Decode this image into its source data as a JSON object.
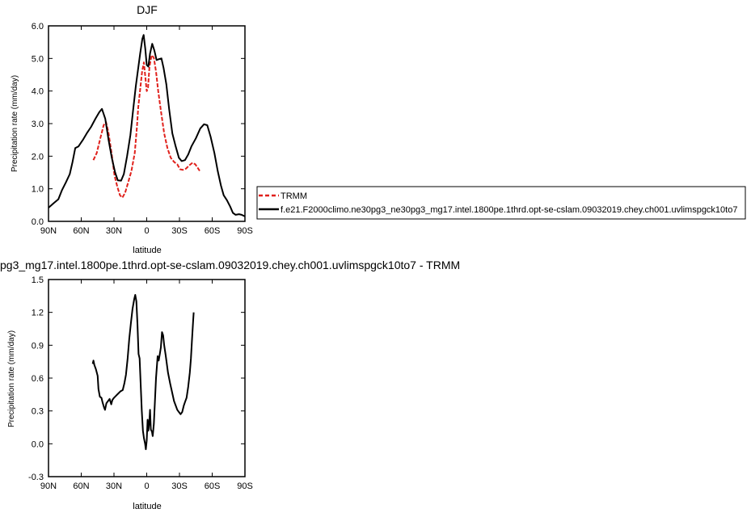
{
  "chart_data": [
    {
      "type": "line",
      "title": "DJF",
      "xlabel": "latitude",
      "ylabel": "Precipitation rate (mm/day)",
      "x_direction": "north-to-south",
      "xlim": [
        90,
        -90
      ],
      "ylim": [
        0,
        6
      ],
      "xticks": [
        {
          "value": 90,
          "label": "90N"
        },
        {
          "value": 60,
          "label": "60N"
        },
        {
          "value": 30,
          "label": "30N"
        },
        {
          "value": 0,
          "label": "0"
        },
        {
          "value": -30,
          "label": "30S"
        },
        {
          "value": -60,
          "label": "60S"
        },
        {
          "value": -90,
          "label": "90S"
        }
      ],
      "yticks": [
        {
          "value": 0,
          "label": "0.0"
        },
        {
          "value": 1,
          "label": "1.0"
        },
        {
          "value": 2,
          "label": "2.0"
        },
        {
          "value": 3,
          "label": "3.0"
        },
        {
          "value": 4,
          "label": "4.0"
        },
        {
          "value": 5,
          "label": "5.0"
        },
        {
          "value": 6,
          "label": "6.0"
        }
      ],
      "legend_position": "right",
      "series": [
        {
          "name": "TRMM",
          "color": "#e0201b",
          "dash": true,
          "points": [
            [
              48.9,
              1.88
            ],
            [
              45.8,
              2.1
            ],
            [
              42.5,
              2.55
            ],
            [
              39.5,
              2.95
            ],
            [
              37.3,
              3.05
            ],
            [
              35.2,
              2.75
            ],
            [
              32.2,
              2.1
            ],
            [
              29.5,
              1.4
            ],
            [
              26.8,
              1.05
            ],
            [
              24.5,
              0.8
            ],
            [
              22.3,
              0.73
            ],
            [
              19.8,
              0.88
            ],
            [
              17.0,
              1.2
            ],
            [
              14.0,
              1.55
            ],
            [
              11.0,
              2.1
            ],
            [
              9.0,
              2.9
            ],
            [
              7.8,
              3.5
            ],
            [
              6.0,
              4.05
            ],
            [
              4.2,
              4.6
            ],
            [
              2.6,
              4.88
            ],
            [
              1.5,
              4.5
            ],
            [
              0.0,
              4.0
            ],
            [
              -1.2,
              4.1
            ],
            [
              -2.5,
              4.75
            ],
            [
              -4.5,
              5.1
            ],
            [
              -6.5,
              5.02
            ],
            [
              -8.5,
              4.6
            ],
            [
              -10.5,
              4.0
            ],
            [
              -13.0,
              3.4
            ],
            [
              -16.0,
              2.7
            ],
            [
              -19.0,
              2.25
            ],
            [
              -22.0,
              1.95
            ],
            [
              -25.2,
              1.82
            ],
            [
              -28.0,
              1.75
            ],
            [
              -30.5,
              1.6
            ],
            [
              -33.0,
              1.58
            ],
            [
              -36.0,
              1.62
            ],
            [
              -39.0,
              1.72
            ],
            [
              -42.0,
              1.8
            ],
            [
              -44.5,
              1.75
            ],
            [
              -46.5,
              1.65
            ],
            [
              -48.5,
              1.55
            ]
          ]
        },
        {
          "name": "f.e21.F2000climo.ne30pg3_ne30pg3_mg17.intel.1800pe.1thrd.opt-se-cslam.09032019.chey.ch001.uvlimspgck10to7",
          "color": "#000000",
          "dash": false,
          "points": [
            [
              90.0,
              0.42
            ],
            [
              85.5,
              0.55
            ],
            [
              81.0,
              0.68
            ],
            [
              77.8,
              0.95
            ],
            [
              74.0,
              1.2
            ],
            [
              70.5,
              1.45
            ],
            [
              68.0,
              1.82
            ],
            [
              65.5,
              2.25
            ],
            [
              62.5,
              2.3
            ],
            [
              58.5,
              2.5
            ],
            [
              55.0,
              2.7
            ],
            [
              51.0,
              2.9
            ],
            [
              47.0,
              3.15
            ],
            [
              43.5,
              3.35
            ],
            [
              41.0,
              3.45
            ],
            [
              38.0,
              3.15
            ],
            [
              35.0,
              2.5
            ],
            [
              32.0,
              1.95
            ],
            [
              29.0,
              1.5
            ],
            [
              26.5,
              1.26
            ],
            [
              23.5,
              1.25
            ],
            [
              21.0,
              1.45
            ],
            [
              18.0,
              2.0
            ],
            [
              15.0,
              2.65
            ],
            [
              12.5,
              3.4
            ],
            [
              10.0,
              4.15
            ],
            [
              8.0,
              4.65
            ],
            [
              6.0,
              5.15
            ],
            [
              4.0,
              5.6
            ],
            [
              2.8,
              5.72
            ],
            [
              1.3,
              5.3
            ],
            [
              0.0,
              4.8
            ],
            [
              -1.5,
              4.75
            ],
            [
              -3.0,
              5.15
            ],
            [
              -5.0,
              5.45
            ],
            [
              -7.0,
              5.25
            ],
            [
              -9.0,
              4.95
            ],
            [
              -11.5,
              4.98
            ],
            [
              -13.5,
              5.0
            ],
            [
              -15.5,
              4.7
            ],
            [
              -18.0,
              4.2
            ],
            [
              -20.5,
              3.45
            ],
            [
              -23.5,
              2.7
            ],
            [
              -26.5,
              2.3
            ],
            [
              -29.5,
              1.95
            ],
            [
              -32.0,
              1.85
            ],
            [
              -35.0,
              1.88
            ],
            [
              -38.0,
              2.05
            ],
            [
              -41.0,
              2.3
            ],
            [
              -45.0,
              2.55
            ],
            [
              -49.0,
              2.85
            ],
            [
              -52.5,
              2.98
            ],
            [
              -55.5,
              2.95
            ],
            [
              -58.5,
              2.6
            ],
            [
              -62.0,
              2.1
            ],
            [
              -65.0,
              1.55
            ],
            [
              -68.0,
              1.1
            ],
            [
              -70.5,
              0.8
            ],
            [
              -73.5,
              0.65
            ],
            [
              -76.5,
              0.45
            ],
            [
              -79.0,
              0.26
            ],
            [
              -81.5,
              0.2
            ],
            [
              -84.5,
              0.22
            ],
            [
              -87.0,
              0.2
            ],
            [
              -90.0,
              0.15
            ]
          ]
        }
      ]
    },
    {
      "type": "line",
      "title": "pg3_mg17.intel.1800pe.1thrd.opt-se-cslam.09032019.chey.ch001.uvlimspgck10to7 - TRMM",
      "xlabel": "latitude",
      "ylabel": "Precipitation rate (mm/day)",
      "x_direction": "north-to-south",
      "xlim": [
        90,
        -90
      ],
      "ylim": [
        -0.3,
        1.5
      ],
      "xticks": [
        {
          "value": 90,
          "label": "90N"
        },
        {
          "value": 60,
          "label": "60N"
        },
        {
          "value": 30,
          "label": "30N"
        },
        {
          "value": 0,
          "label": "0"
        },
        {
          "value": -30,
          "label": "30S"
        },
        {
          "value": -60,
          "label": "60S"
        },
        {
          "value": -90,
          "label": "90S"
        }
      ],
      "yticks": [
        {
          "value": -0.3,
          "label": "-0.3"
        },
        {
          "value": 0.0,
          "label": "0.0"
        },
        {
          "value": 0.3,
          "label": "0.3"
        },
        {
          "value": 0.6,
          "label": "0.6"
        },
        {
          "value": 0.9,
          "label": "0.9"
        },
        {
          "value": 1.2,
          "label": "1.2"
        },
        {
          "value": 1.5,
          "label": "1.5"
        }
      ],
      "series": [
        {
          "color": "#000000",
          "dash": false,
          "points": [
            [
              49.5,
              0.73
            ],
            [
              48.8,
              0.76
            ],
            [
              48.0,
              0.72
            ],
            [
              46.5,
              0.68
            ],
            [
              45.0,
              0.62
            ],
            [
              44.2,
              0.5
            ],
            [
              43.0,
              0.43
            ],
            [
              41.5,
              0.42
            ],
            [
              40.5,
              0.38
            ],
            [
              39.0,
              0.33
            ],
            [
              38.2,
              0.31
            ],
            [
              37.0,
              0.37
            ],
            [
              35.5,
              0.39
            ],
            [
              34.0,
              0.41
            ],
            [
              32.5,
              0.36
            ],
            [
              31.5,
              0.4
            ],
            [
              30.0,
              0.42
            ],
            [
              28.0,
              0.44
            ],
            [
              26.0,
              0.46
            ],
            [
              24.0,
              0.48
            ],
            [
              22.0,
              0.49
            ],
            [
              20.5,
              0.55
            ],
            [
              19.0,
              0.63
            ],
            [
              17.5,
              0.78
            ],
            [
              16.0,
              0.96
            ],
            [
              14.5,
              1.1
            ],
            [
              13.0,
              1.23
            ],
            [
              11.5,
              1.32
            ],
            [
              10.5,
              1.36
            ],
            [
              9.5,
              1.3
            ],
            [
              8.5,
              1.1
            ],
            [
              7.5,
              0.82
            ],
            [
              6.5,
              0.78
            ],
            [
              5.5,
              0.53
            ],
            [
              4.5,
              0.3
            ],
            [
              3.5,
              0.12
            ],
            [
              2.5,
              0.05
            ],
            [
              1.5,
              0.0
            ],
            [
              0.8,
              -0.05
            ],
            [
              0.0,
              0.03
            ],
            [
              -0.8,
              0.22
            ],
            [
              -1.5,
              0.12
            ],
            [
              -2.3,
              0.19
            ],
            [
              -3.0,
              0.31
            ],
            [
              -3.8,
              0.13
            ],
            [
              -4.8,
              0.11
            ],
            [
              -5.5,
              0.07
            ],
            [
              -6.5,
              0.18
            ],
            [
              -7.5,
              0.38
            ],
            [
              -8.5,
              0.6
            ],
            [
              -10.0,
              0.8
            ],
            [
              -11.0,
              0.76
            ],
            [
              -12.0,
              0.82
            ],
            [
              -13.0,
              0.88
            ],
            [
              -14.0,
              1.02
            ],
            [
              -15.0,
              0.99
            ],
            [
              -16.0,
              0.9
            ],
            [
              -17.5,
              0.8
            ],
            [
              -19.5,
              0.65
            ],
            [
              -21.5,
              0.55
            ],
            [
              -23.5,
              0.46
            ],
            [
              -25.0,
              0.39
            ],
            [
              -26.5,
              0.35
            ],
            [
              -28.0,
              0.31
            ],
            [
              -29.5,
              0.29
            ],
            [
              -31.0,
              0.27
            ],
            [
              -32.5,
              0.29
            ],
            [
              -34.0,
              0.35
            ],
            [
              -35.0,
              0.38
            ],
            [
              -36.5,
              0.42
            ],
            [
              -38.0,
              0.52
            ],
            [
              -39.5,
              0.65
            ],
            [
              -40.5,
              0.78
            ],
            [
              -41.5,
              0.95
            ],
            [
              -42.5,
              1.12
            ],
            [
              -43.0,
              1.2
            ]
          ]
        }
      ]
    }
  ]
}
